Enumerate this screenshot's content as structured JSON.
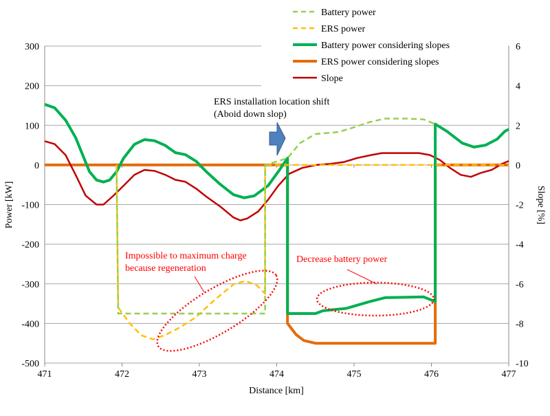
{
  "chart_data": {
    "type": "line",
    "xlabel": "Distance [km]",
    "ylabel": "Power [kW]",
    "y2label": "Slope [%]",
    "xlim": [
      471,
      477
    ],
    "ylim": [
      -500,
      300
    ],
    "y2lim": [
      -10,
      6
    ],
    "xticks": [
      "471",
      "472",
      "473",
      "474",
      "475",
      "476",
      "477"
    ],
    "yticks": [
      "300",
      "200",
      "100",
      "0",
      "-100",
      "-200",
      "-300",
      "-400",
      "-500"
    ],
    "y2ticks": [
      "6",
      "4",
      "2",
      "0",
      "-2",
      "-4",
      "-6",
      "-8",
      "-10"
    ],
    "grid": true,
    "legend_position": "top-right",
    "series": [
      {
        "name": "Battery power",
        "axis": "left",
        "color": "#92d050",
        "dash": true,
        "points": [
          [
            471.93,
            -10
          ],
          [
            471.95,
            -375
          ],
          [
            473.85,
            -375
          ],
          [
            473.85,
            0
          ],
          [
            474.14,
            17
          ],
          [
            474.3,
            55
          ],
          [
            474.5,
            78
          ],
          [
            474.8,
            83
          ],
          [
            475.0,
            95
          ],
          [
            475.2,
            108
          ],
          [
            475.4,
            117
          ],
          [
            475.7,
            117
          ],
          [
            475.9,
            115
          ],
          [
            476.05,
            103
          ]
        ]
      },
      {
        "name": "ERS power",
        "axis": "left",
        "color": "#ffc000",
        "dash": true,
        "points": [
          [
            471.93,
            0
          ],
          [
            471.95,
            -360
          ],
          [
            472.1,
            -400
          ],
          [
            472.25,
            -430
          ],
          [
            472.4,
            -440
          ],
          [
            472.55,
            -430
          ],
          [
            472.75,
            -410
          ],
          [
            472.95,
            -385
          ],
          [
            473.2,
            -340
          ],
          [
            473.45,
            -300
          ],
          [
            473.6,
            -293
          ],
          [
            473.75,
            -305
          ],
          [
            473.85,
            -325
          ],
          [
            473.85,
            0
          ],
          [
            477,
            0
          ]
        ]
      },
      {
        "name": "Battery power considering slopes",
        "axis": "left",
        "color": "#00b050",
        "dash": false,
        "points": [
          [
            471.0,
            153
          ],
          [
            471.13,
            144
          ],
          [
            471.27,
            113
          ],
          [
            471.4,
            69
          ],
          [
            471.49,
            26
          ],
          [
            471.58,
            -17
          ],
          [
            471.67,
            -38
          ],
          [
            471.76,
            -43
          ],
          [
            471.84,
            -38
          ],
          [
            471.93,
            -17
          ],
          [
            472.02,
            17
          ],
          [
            472.16,
            52
          ],
          [
            472.29,
            64
          ],
          [
            472.42,
            61
          ],
          [
            472.56,
            49
          ],
          [
            472.69,
            31
          ],
          [
            472.82,
            26
          ],
          [
            472.96,
            9
          ],
          [
            473.09,
            -17
          ],
          [
            473.27,
            -49
          ],
          [
            473.44,
            -75
          ],
          [
            473.58,
            -83
          ],
          [
            473.71,
            -78
          ],
          [
            473.89,
            -52
          ],
          [
            474.02,
            -17
          ],
          [
            474.14,
            17
          ],
          [
            474.14,
            -375
          ],
          [
            474.5,
            -375
          ],
          [
            474.6,
            -368
          ],
          [
            474.9,
            -362
          ],
          [
            475.2,
            -345
          ],
          [
            475.4,
            -335
          ],
          [
            475.7,
            -334
          ],
          [
            475.9,
            -333
          ],
          [
            476.05,
            -345
          ],
          [
            476.05,
            103
          ],
          [
            476.2,
            85
          ],
          [
            476.4,
            55
          ],
          [
            476.55,
            45
          ],
          [
            476.7,
            50
          ],
          [
            476.85,
            65
          ],
          [
            476.95,
            85
          ],
          [
            477.0,
            90
          ]
        ]
      },
      {
        "name": "ERS power considering slopes",
        "axis": "left",
        "color": "#e46c0a",
        "dash": false,
        "points": [
          [
            471.0,
            0
          ],
          [
            474.14,
            0
          ],
          [
            474.14,
            -400
          ],
          [
            474.25,
            -428
          ],
          [
            474.35,
            -443
          ],
          [
            474.5,
            -450
          ],
          [
            476.05,
            -450
          ],
          [
            476.05,
            0
          ],
          [
            477,
            0
          ]
        ]
      },
      {
        "name": "Slope",
        "axis": "right",
        "color": "#c00000",
        "dash": false,
        "points": [
          [
            471.0,
            1.2
          ],
          [
            471.13,
            1.05
          ],
          [
            471.27,
            0.5
          ],
          [
            471.4,
            -0.5
          ],
          [
            471.53,
            -1.55
          ],
          [
            471.67,
            -2.0
          ],
          [
            471.76,
            -2.0
          ],
          [
            471.89,
            -1.55
          ],
          [
            472.02,
            -1.05
          ],
          [
            472.16,
            -0.5
          ],
          [
            472.29,
            -0.25
          ],
          [
            472.42,
            -0.3
          ],
          [
            472.56,
            -0.5
          ],
          [
            472.69,
            -0.75
          ],
          [
            472.82,
            -0.85
          ],
          [
            472.96,
            -1.2
          ],
          [
            473.09,
            -1.6
          ],
          [
            473.27,
            -2.1
          ],
          [
            473.44,
            -2.65
          ],
          [
            473.53,
            -2.8
          ],
          [
            473.62,
            -2.7
          ],
          [
            473.76,
            -2.35
          ],
          [
            473.89,
            -1.75
          ],
          [
            474.02,
            -1.05
          ],
          [
            474.16,
            -0.45
          ],
          [
            474.33,
            -0.15
          ],
          [
            474.51,
            0
          ],
          [
            474.69,
            0.05
          ],
          [
            474.87,
            0.15
          ],
          [
            475.04,
            0.35
          ],
          [
            475.22,
            0.5
          ],
          [
            475.36,
            0.6
          ],
          [
            475.58,
            0.6
          ],
          [
            475.84,
            0.6
          ],
          [
            475.98,
            0.5
          ],
          [
            476.11,
            0.25
          ],
          [
            476.24,
            -0.15
          ],
          [
            476.38,
            -0.5
          ],
          [
            476.51,
            -0.6
          ],
          [
            476.64,
            -0.4
          ],
          [
            476.78,
            -0.25
          ],
          [
            476.91,
            0.05
          ],
          [
            477.0,
            0.2
          ]
        ]
      }
    ],
    "annotations": {
      "shift_line1": "ERS installation location shift",
      "shift_line2": "(Aboid down slop)",
      "regen_line1": "Impossible to maximum charge",
      "regen_line2": "because regeneration",
      "decrease": "Decrease battery power"
    }
  }
}
